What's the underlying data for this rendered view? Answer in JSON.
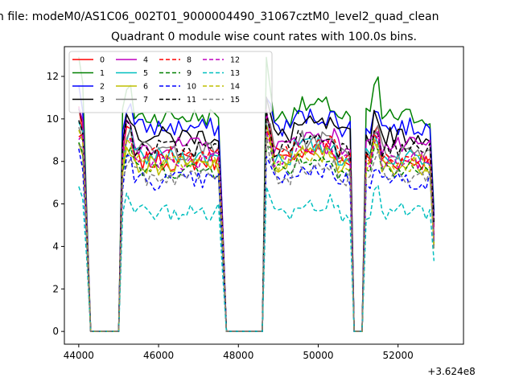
{
  "figure": {
    "suptitle": "n file: modeM0/AS1C06_002T01_9000004490_31067cztM0_level2_quad_clean",
    "title": "Quadrant 0 module wise count rates with 100.0s bins.",
    "offset_label": "+3.624e8"
  },
  "chart_data": {
    "type": "line",
    "title": "Quadrant 0 module wise count rates with 100.0s bins.",
    "xlabel": "",
    "ylabel": "",
    "x_offset": 362400000,
    "xlim": [
      43640,
      53640
    ],
    "ylim": [
      -0.6,
      13.4
    ],
    "x_ticks": [
      44000,
      46000,
      48000,
      50000,
      52000
    ],
    "x_tick_labels": [
      "44000",
      "46000",
      "48000",
      "50000",
      "52000"
    ],
    "y_ticks": [
      0,
      2,
      4,
      6,
      8,
      10,
      12
    ],
    "y_tick_labels": [
      "0",
      "2",
      "4",
      "6",
      "8",
      "10",
      "12"
    ],
    "grid": false,
    "legend": {
      "placement": "top-left",
      "columns": 4
    },
    "segments": [
      {
        "start": 44000,
        "end": 44200,
        "peak": 44000
      },
      {
        "start": 45050,
        "end": 47600,
        "peak": 45250
      },
      {
        "start": 48700,
        "end": 50850,
        "peak": 48700
      },
      {
        "start": 51200,
        "end": 52900,
        "peak": 51450
      }
    ],
    "series": [
      {
        "name": "0",
        "color": "#ff0000",
        "dash": "solid",
        "level": 8.0,
        "peak": 10.5
      },
      {
        "name": "1",
        "color": "#008000",
        "dash": "solid",
        "level": 10.1,
        "peak": 12.6
      },
      {
        "name": "2",
        "color": "#0000ff",
        "dash": "solid",
        "level": 9.6,
        "peak": 11.3
      },
      {
        "name": "3",
        "color": "#000000",
        "dash": "solid",
        "level": 9.2,
        "peak": 10.9
      },
      {
        "name": "4",
        "color": "#bf00bf",
        "dash": "solid",
        "level": 8.7,
        "peak": 10.3
      },
      {
        "name": "5",
        "color": "#00bfbf",
        "dash": "solid",
        "level": 8.2,
        "peak": 9.8
      },
      {
        "name": "6",
        "color": "#bfbf00",
        "dash": "solid",
        "level": 7.8,
        "peak": 9.3
      },
      {
        "name": "7",
        "color": "#808080",
        "dash": "solid",
        "level": 8.5,
        "peak": 10.0
      },
      {
        "name": "8",
        "color": "#ff0000",
        "dash": "dashed",
        "level": 8.3,
        "peak": 9.6
      },
      {
        "name": "9",
        "color": "#008000",
        "dash": "dashed",
        "level": 7.6,
        "peak": 9.0
      },
      {
        "name": "10",
        "color": "#0000ff",
        "dash": "dashed",
        "level": 7.1,
        "peak": 8.5
      },
      {
        "name": "11",
        "color": "#000000",
        "dash": "dashed",
        "level": 8.6,
        "peak": 10.2
      },
      {
        "name": "12",
        "color": "#bf00bf",
        "dash": "dashed",
        "level": 8.0,
        "peak": 9.4
      },
      {
        "name": "13",
        "color": "#00bfbf",
        "dash": "dashed",
        "level": 5.6,
        "peak": 7.0
      },
      {
        "name": "14",
        "color": "#bfbf00",
        "dash": "dashed",
        "level": 7.9,
        "peak": 9.2
      },
      {
        "name": "15",
        "color": "#808080",
        "dash": "dashed",
        "level": 7.3,
        "peak": 8.8
      }
    ]
  }
}
